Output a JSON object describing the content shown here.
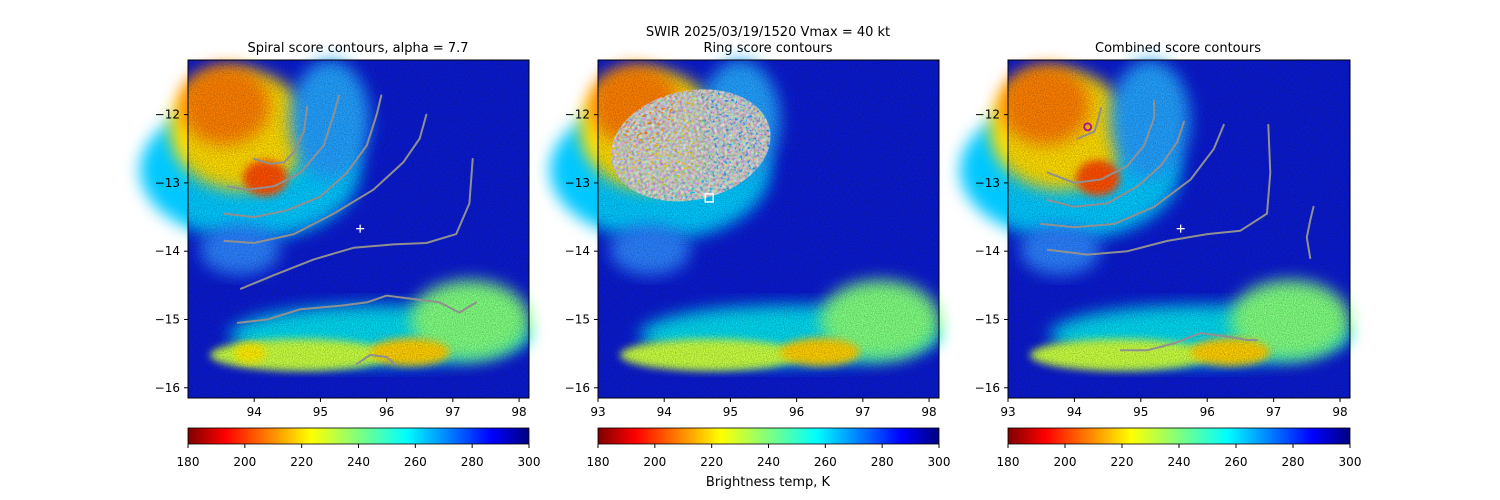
{
  "figure": {
    "suptitle_line1": "SWIR  2025/03/19/1520    Vmax = 40 kt"
  },
  "colors": {
    "contour": "#909090",
    "center_marker": "#ffffff",
    "best_point_marker": "#aa1a8c"
  },
  "chart_data": [
    {
      "type": "heatmap",
      "title": "Spiral score contours, alpha =  7.7",
      "xlim": [
        93.0,
        98.15
      ],
      "ylim": [
        -16.15,
        -11.2
      ],
      "xticks": [
        94,
        95,
        96,
        97,
        98
      ],
      "yticks": [
        -12,
        -13,
        -14,
        -15,
        -16
      ],
      "center_marker": {
        "x": 95.6,
        "y": -13.67,
        "symbol": "+"
      },
      "contours": [
        [
          [
            94.0,
            -12.65
          ],
          [
            94.25,
            -12.72
          ],
          [
            94.45,
            -12.7
          ],
          [
            94.6,
            -12.55
          ],
          [
            94.75,
            -12.25
          ],
          [
            94.8,
            -11.88
          ]
        ],
        [
          [
            93.6,
            -13.05
          ],
          [
            93.9,
            -13.1
          ],
          [
            94.3,
            -13.05
          ],
          [
            94.7,
            -12.85
          ],
          [
            95.05,
            -12.45
          ],
          [
            95.2,
            -12.0
          ],
          [
            95.28,
            -11.72
          ]
        ],
        [
          [
            93.55,
            -13.45
          ],
          [
            94.0,
            -13.5
          ],
          [
            94.5,
            -13.4
          ],
          [
            95.0,
            -13.2
          ],
          [
            95.4,
            -12.85
          ],
          [
            95.7,
            -12.45
          ],
          [
            95.85,
            -12.0
          ],
          [
            95.92,
            -11.72
          ]
        ],
        [
          [
            93.55,
            -13.85
          ],
          [
            94.0,
            -13.88
          ],
          [
            94.6,
            -13.75
          ],
          [
            95.2,
            -13.45
          ],
          [
            95.8,
            -13.1
          ],
          [
            96.25,
            -12.7
          ],
          [
            96.5,
            -12.35
          ],
          [
            96.6,
            -12.0
          ]
        ],
        [
          [
            93.8,
            -14.55
          ],
          [
            94.3,
            -14.35
          ],
          [
            94.9,
            -14.12
          ],
          [
            95.5,
            -13.95
          ],
          [
            96.1,
            -13.9
          ],
          [
            96.6,
            -13.88
          ],
          [
            97.05,
            -13.75
          ],
          [
            97.25,
            -13.3
          ],
          [
            97.3,
            -12.65
          ]
        ],
        [
          [
            93.75,
            -15.05
          ],
          [
            94.2,
            -15.0
          ],
          [
            94.7,
            -14.85
          ],
          [
            95.3,
            -14.8
          ],
          [
            95.7,
            -14.75
          ],
          [
            96.0,
            -14.65
          ],
          [
            96.4,
            -14.7
          ],
          [
            96.8,
            -14.75
          ],
          [
            97.1,
            -14.9
          ],
          [
            97.35,
            -14.75
          ]
        ],
        [
          [
            95.55,
            -15.65
          ],
          [
            95.75,
            -15.52
          ],
          [
            96.0,
            -15.55
          ],
          [
            96.12,
            -15.65
          ]
        ]
      ]
    },
    {
      "type": "heatmap",
      "title": "Ring score contours",
      "xlim": [
        93.0,
        98.15
      ],
      "ylim": [
        -16.15,
        -11.2
      ],
      "xticks": [
        93,
        94,
        95,
        96,
        97,
        98
      ],
      "yticks": [
        -12,
        -13,
        -14,
        -15,
        -16
      ],
      "ring_region": {
        "center_x": 94.4,
        "center_y": -12.45,
        "radius_x": 1.22,
        "radius_y": 0.8,
        "fill": "#8a8a86"
      },
      "best_ring_marker": {
        "x": 94.68,
        "y": -13.22,
        "symbol": "square"
      },
      "contours": []
    },
    {
      "type": "heatmap",
      "title": "Combined score contours",
      "xlim": [
        93.0,
        98.15
      ],
      "ylim": [
        -16.15,
        -11.2
      ],
      "xticks": [
        93,
        94,
        95,
        96,
        97,
        98
      ],
      "yticks": [
        -12,
        -13,
        -14,
        -15,
        -16
      ],
      "center_marker": {
        "x": 95.6,
        "y": -13.67,
        "symbol": "+"
      },
      "best_point_marker": {
        "x": 94.2,
        "y": -12.18,
        "symbol": "circle"
      },
      "contours": [
        [
          [
            94.05,
            -12.35
          ],
          [
            94.3,
            -12.25
          ],
          [
            94.35,
            -12.1
          ],
          [
            94.4,
            -11.9
          ]
        ],
        [
          [
            93.6,
            -12.85
          ],
          [
            94.0,
            -13.0
          ],
          [
            94.4,
            -12.95
          ],
          [
            94.8,
            -12.75
          ],
          [
            95.05,
            -12.45
          ],
          [
            95.2,
            -12.05
          ],
          [
            95.2,
            -11.8
          ]
        ],
        [
          [
            93.6,
            -13.25
          ],
          [
            94.0,
            -13.35
          ],
          [
            94.5,
            -13.3
          ],
          [
            94.95,
            -13.05
          ],
          [
            95.3,
            -12.75
          ],
          [
            95.55,
            -12.4
          ],
          [
            95.65,
            -12.1
          ]
        ],
        [
          [
            93.5,
            -13.6
          ],
          [
            94.0,
            -13.65
          ],
          [
            94.6,
            -13.6
          ],
          [
            95.2,
            -13.35
          ],
          [
            95.75,
            -12.95
          ],
          [
            96.1,
            -12.5
          ],
          [
            96.25,
            -12.15
          ]
        ],
        [
          [
            93.6,
            -13.98
          ],
          [
            94.2,
            -14.05
          ],
          [
            94.8,
            -14.0
          ],
          [
            95.4,
            -13.85
          ],
          [
            96.0,
            -13.75
          ],
          [
            96.5,
            -13.7
          ],
          [
            96.9,
            -13.45
          ],
          [
            96.95,
            -12.85
          ],
          [
            96.92,
            -12.15
          ]
        ],
        [
          [
            97.55,
            -14.1
          ],
          [
            97.5,
            -13.8
          ],
          [
            97.55,
            -13.55
          ],
          [
            97.6,
            -13.35
          ]
        ],
        [
          [
            94.7,
            -15.45
          ],
          [
            95.1,
            -15.45
          ],
          [
            95.5,
            -15.35
          ],
          [
            95.9,
            -15.2
          ],
          [
            96.3,
            -15.25
          ],
          [
            96.6,
            -15.3
          ],
          [
            96.75,
            -15.3
          ]
        ]
      ]
    }
  ],
  "colorbars": [
    {
      "ticks": [
        180,
        200,
        220,
        240,
        260,
        280,
        300
      ],
      "label": ""
    },
    {
      "ticks": [
        180,
        200,
        220,
        240,
        260,
        280,
        300
      ],
      "label": "Brightness temp, K"
    },
    {
      "ticks": [
        180,
        200,
        220,
        240,
        260,
        280,
        300
      ],
      "label": ""
    }
  ],
  "colormap": "jet_reversed",
  "colorbar_range": [
    180,
    300
  ]
}
